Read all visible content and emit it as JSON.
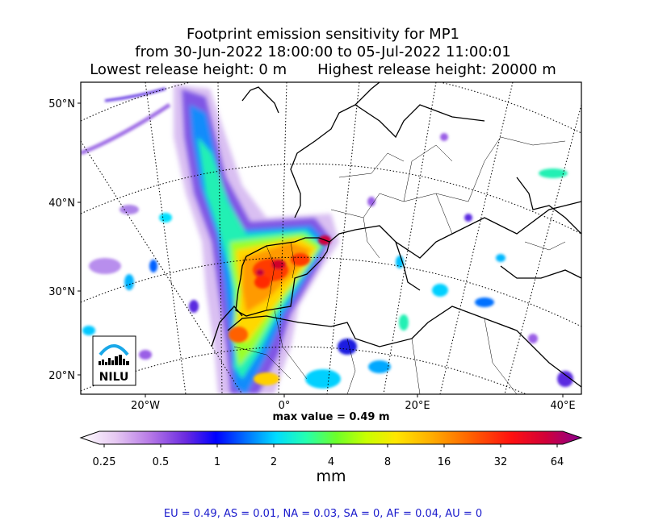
{
  "title": {
    "line1": "Footprint emission sensitivity for MP1",
    "line2": "from 30-Jun-2022 18:00:00 to 05-Jul-2022 11:00:01",
    "line3_left": "Lowest release height: 0 m",
    "line3_right": "Highest release height: 20000 m"
  },
  "map": {
    "lat_labels": [
      "50°N",
      "40°N",
      "30°N",
      "20°N"
    ],
    "lon_labels": [
      "20°W",
      "0°",
      "20°E",
      "40°E"
    ],
    "logo_text": "NILU"
  },
  "max_value_text": "max value = 0.49 m",
  "colorbar": {
    "ticks": [
      "0.25",
      "0.5",
      "1",
      "2",
      "4",
      "8",
      "16",
      "32",
      "64"
    ],
    "unit": "mm",
    "colors": [
      "#ffffff",
      "#d9a8ee",
      "#9a4ee0",
      "#4b1ad8",
      "#0000ff",
      "#0088ff",
      "#00e8ff",
      "#2aff9a",
      "#7cff2a",
      "#dcff00",
      "#ffd000",
      "#ff8a00",
      "#ff2a00",
      "#e00030",
      "#9a0090"
    ]
  },
  "footer": "EU = 0.49,  AS = 0.01,  NA = 0.03,  SA = 0,  AF = 0.04,  AU = 0"
}
